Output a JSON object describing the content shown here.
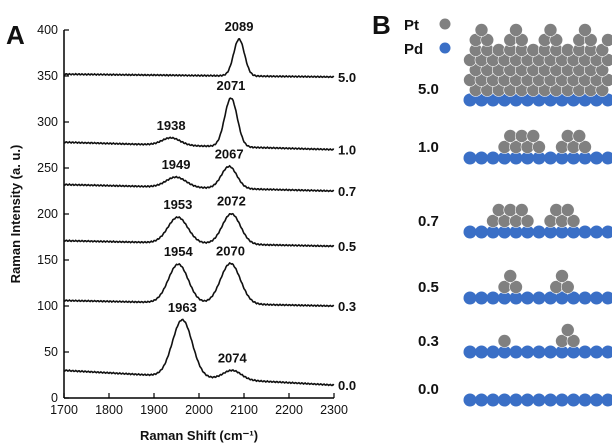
{
  "panel_a": {
    "letter": "A"
  },
  "panel_b": {
    "letter": "B",
    "legend": [
      {
        "label": "Pt",
        "color": "#808080"
      },
      {
        "label": "Pd",
        "color": "#3a6fc6"
      }
    ],
    "rows": [
      {
        "label": "5.0",
        "pt_layers": 5
      },
      {
        "label": "1.0",
        "pt_layers": 1
      },
      {
        "label": "0.7",
        "pt_layers": 0.7
      },
      {
        "label": "0.5",
        "pt_layers": 0.5
      },
      {
        "label": "0.3",
        "pt_layers": 0.3
      },
      {
        "label": "0.0",
        "pt_layers": 0
      }
    ]
  },
  "chart_data": {
    "type": "line",
    "title": "",
    "xlabel": "Raman Shift (cm⁻¹)",
    "ylabel": "Raman Intensity (a. u.)",
    "xlim": [
      1700,
      2300
    ],
    "ylim": [
      0,
      400
    ],
    "xticks": [
      1700,
      1800,
      1900,
      2000,
      2100,
      2200,
      2300
    ],
    "yticks": [
      0,
      50,
      100,
      150,
      200,
      250,
      300,
      350,
      400
    ],
    "series": [
      {
        "name": "5.0",
        "baseline_start": 352,
        "baseline_end": 349,
        "peaks": [
          {
            "x": 2089,
            "height": 40,
            "width": 12,
            "label": "2089"
          }
        ]
      },
      {
        "name": "1.0",
        "baseline_start": 278,
        "baseline_end": 270,
        "peaks": [
          {
            "x": 1938,
            "height": 8,
            "width": 20,
            "label": "1938"
          },
          {
            "x": 2071,
            "height": 53,
            "width": 14,
            "label": "2071"
          }
        ]
      },
      {
        "name": "0.7",
        "baseline_start": 232,
        "baseline_end": 225,
        "peaks": [
          {
            "x": 1949,
            "height": 11,
            "width": 22,
            "label": "1949"
          },
          {
            "x": 2067,
            "height": 24,
            "width": 17,
            "label": "2067"
          }
        ]
      },
      {
        "name": "0.5",
        "baseline_start": 171,
        "baseline_end": 165,
        "peaks": [
          {
            "x": 1953,
            "height": 28,
            "width": 22,
            "label": "1953"
          },
          {
            "x": 2072,
            "height": 33,
            "width": 20,
            "label": "2072"
          }
        ]
      },
      {
        "name": "0.3",
        "baseline_start": 106,
        "baseline_end": 100,
        "peaks": [
          {
            "x": 1954,
            "height": 42,
            "width": 22,
            "label": "1954"
          },
          {
            "x": 2070,
            "height": 44,
            "width": 22,
            "label": "2070"
          }
        ]
      },
      {
        "name": "0.0",
        "baseline_start": 30,
        "baseline_end": 14,
        "peaks": [
          {
            "x": 1963,
            "height": 62,
            "width": 22,
            "label": "1963"
          },
          {
            "x": 2074,
            "height": 10,
            "width": 20,
            "label": "2074"
          }
        ]
      }
    ]
  }
}
